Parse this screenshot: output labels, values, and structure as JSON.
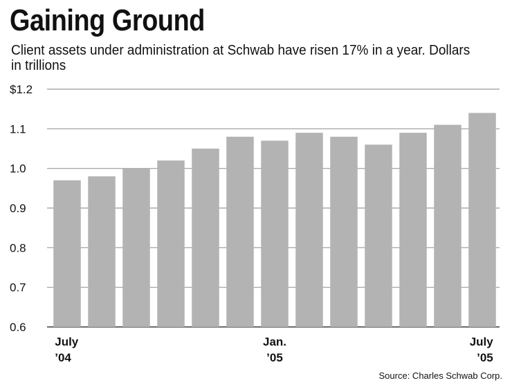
{
  "chart_data": {
    "type": "bar",
    "title": "Gaining Ground",
    "subtitle": "Client assets under administration at Schwab have risen 17% in a year. Dollars in trillions",
    "categories": [
      "",
      "",
      "",
      "",
      "",
      "",
      "",
      "",
      "",
      "",
      "",
      "",
      ""
    ],
    "values": [
      0.97,
      0.98,
      1.0,
      1.02,
      1.05,
      1.08,
      1.07,
      1.09,
      1.08,
      1.06,
      1.09,
      1.11,
      1.14
    ],
    "ylim": [
      0.6,
      1.2
    ],
    "yticks": [
      {
        "value": 1.2,
        "label": "$1.2"
      },
      {
        "value": 1.1,
        "label": "1.1"
      },
      {
        "value": 1.0,
        "label": "1.0"
      },
      {
        "value": 0.9,
        "label": "0.9"
      },
      {
        "value": 0.8,
        "label": "0.8"
      },
      {
        "value": 0.7,
        "label": "0.7"
      },
      {
        "value": 0.6,
        "label": "0.6"
      }
    ],
    "xlabels": [
      {
        "index": 0,
        "line1": "July",
        "line2": "’04"
      },
      {
        "index": 6,
        "line1": "Jan.",
        "line2": "’05"
      },
      {
        "index": 12,
        "line1": "July",
        "line2": "’05"
      }
    ],
    "grid": true,
    "bar_color": "#b3b3b3",
    "grid_color": "#9a9a9a"
  },
  "source": "Source: Charles Schwab Corp."
}
